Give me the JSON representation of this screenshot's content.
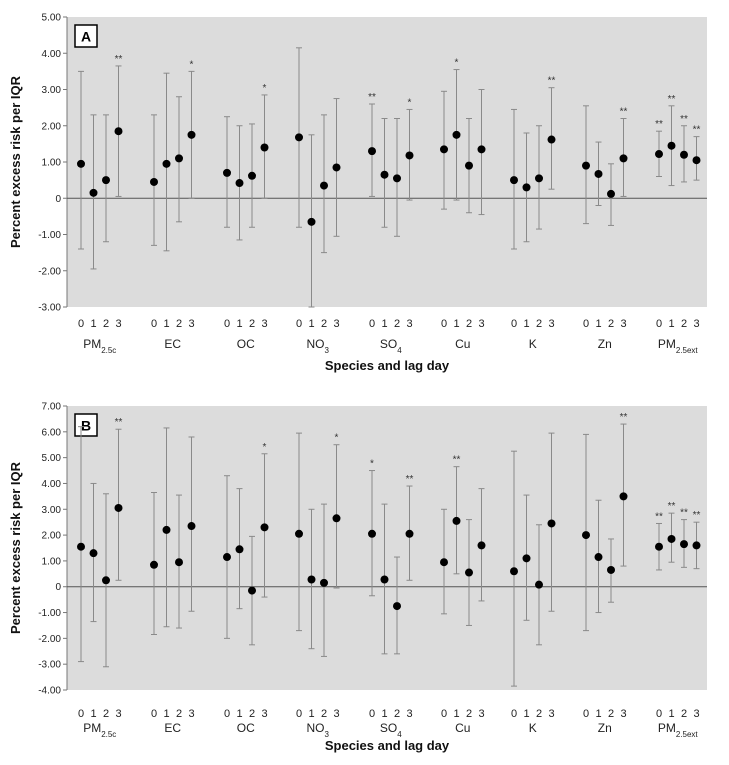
{
  "figure": {
    "species": [
      {
        "main": "PM",
        "sub": "2.5c"
      },
      {
        "main": "EC",
        "sub": ""
      },
      {
        "main": "OC",
        "sub": ""
      },
      {
        "main": "NO",
        "sub": "3"
      },
      {
        "main": "SO",
        "sub": "4"
      },
      {
        "main": "Cu",
        "sub": ""
      },
      {
        "main": "K",
        "sub": ""
      },
      {
        "main": "Zn",
        "sub": ""
      },
      {
        "main": "PM",
        "sub": "2.5ext"
      }
    ],
    "lag_labels": [
      "0",
      "1",
      "2",
      "3"
    ]
  },
  "chart_data": [
    {
      "type": "scatter",
      "panel": "A",
      "title": "",
      "xlabel": "Species and lag day",
      "ylabel": "Percent excess risk per IQR",
      "ylim": [
        -3,
        5
      ],
      "yticks": [
        "-3.00",
        "-2.00",
        "-1.00",
        "0",
        "1.00",
        "2.00",
        "3.00",
        "4.00",
        "5.00"
      ],
      "ytick_values": [
        -3,
        -2,
        -1,
        0,
        1,
        2,
        3,
        4,
        5
      ],
      "groups": [
        {
          "species": "PM2.5c",
          "points": [
            {
              "lag": 0,
              "est": 0.95,
              "lo": -1.4,
              "hi": 3.5,
              "sig": ""
            },
            {
              "lag": 1,
              "est": 0.15,
              "lo": -1.95,
              "hi": 2.3,
              "sig": ""
            },
            {
              "lag": 2,
              "est": 0.5,
              "lo": -1.2,
              "hi": 2.3,
              "sig": ""
            },
            {
              "lag": 3,
              "est": 1.85,
              "lo": 0.05,
              "hi": 3.65,
              "sig": "**"
            }
          ]
        },
        {
          "species": "EC",
          "points": [
            {
              "lag": 0,
              "est": 0.45,
              "lo": -1.3,
              "hi": 2.3,
              "sig": ""
            },
            {
              "lag": 1,
              "est": 0.95,
              "lo": -1.45,
              "hi": 3.45,
              "sig": ""
            },
            {
              "lag": 2,
              "est": 1.1,
              "lo": -0.65,
              "hi": 2.8,
              "sig": ""
            },
            {
              "lag": 3,
              "est": 1.75,
              "lo": 0.0,
              "hi": 3.5,
              "sig": "*"
            }
          ]
        },
        {
          "species": "OC",
          "points": [
            {
              "lag": 0,
              "est": 0.7,
              "lo": -0.8,
              "hi": 2.25,
              "sig": ""
            },
            {
              "lag": 1,
              "est": 0.42,
              "lo": -1.15,
              "hi": 2.0,
              "sig": ""
            },
            {
              "lag": 2,
              "est": 0.62,
              "lo": -0.8,
              "hi": 2.05,
              "sig": ""
            },
            {
              "lag": 3,
              "est": 1.4,
              "lo": 0.0,
              "hi": 2.85,
              "sig": "*"
            }
          ]
        },
        {
          "species": "NO3",
          "points": [
            {
              "lag": 0,
              "est": 1.68,
              "lo": -0.8,
              "hi": 4.15,
              "sig": ""
            },
            {
              "lag": 1,
              "est": -0.65,
              "lo": -3.0,
              "hi": 1.75,
              "sig": ""
            },
            {
              "lag": 2,
              "est": 0.35,
              "lo": -1.5,
              "hi": 2.3,
              "sig": ""
            },
            {
              "lag": 3,
              "est": 0.85,
              "lo": -1.05,
              "hi": 2.75,
              "sig": ""
            }
          ]
        },
        {
          "species": "SO4",
          "points": [
            {
              "lag": 0,
              "est": 1.3,
              "lo": 0.05,
              "hi": 2.6,
              "sig": "**"
            },
            {
              "lag": 1,
              "est": 0.65,
              "lo": -0.8,
              "hi": 2.2,
              "sig": ""
            },
            {
              "lag": 2,
              "est": 0.55,
              "lo": -1.05,
              "hi": 2.2,
              "sig": ""
            },
            {
              "lag": 3,
              "est": 1.18,
              "lo": -0.05,
              "hi": 2.45,
              "sig": "*"
            }
          ]
        },
        {
          "species": "Cu",
          "points": [
            {
              "lag": 0,
              "est": 1.35,
              "lo": -0.3,
              "hi": 2.95,
              "sig": ""
            },
            {
              "lag": 1,
              "est": 1.75,
              "lo": -0.05,
              "hi": 3.55,
              "sig": "*"
            },
            {
              "lag": 2,
              "est": 0.9,
              "lo": -0.4,
              "hi": 2.2,
              "sig": ""
            },
            {
              "lag": 3,
              "est": 1.35,
              "lo": -0.45,
              "hi": 3.0,
              "sig": ""
            }
          ]
        },
        {
          "species": "K",
          "points": [
            {
              "lag": 0,
              "est": 0.5,
              "lo": -1.4,
              "hi": 2.45,
              "sig": ""
            },
            {
              "lag": 1,
              "est": 0.3,
              "lo": -1.2,
              "hi": 1.8,
              "sig": ""
            },
            {
              "lag": 2,
              "est": 0.55,
              "lo": -0.85,
              "hi": 2.0,
              "sig": ""
            },
            {
              "lag": 3,
              "est": 1.62,
              "lo": 0.25,
              "hi": 3.05,
              "sig": "**"
            }
          ]
        },
        {
          "species": "Zn",
          "points": [
            {
              "lag": 0,
              "est": 0.9,
              "lo": -0.7,
              "hi": 2.55,
              "sig": ""
            },
            {
              "lag": 1,
              "est": 0.67,
              "lo": -0.2,
              "hi": 1.55,
              "sig": ""
            },
            {
              "lag": 2,
              "est": 0.12,
              "lo": -0.75,
              "hi": 0.95,
              "sig": ""
            },
            {
              "lag": 3,
              "est": 1.1,
              "lo": 0.05,
              "hi": 2.2,
              "sig": "**"
            }
          ]
        },
        {
          "species": "PM2.5ext",
          "points": [
            {
              "lag": 0,
              "est": 1.22,
              "lo": 0.6,
              "hi": 1.85,
              "sig": "**"
            },
            {
              "lag": 1,
              "est": 1.45,
              "lo": 0.35,
              "hi": 2.55,
              "sig": "**"
            },
            {
              "lag": 2,
              "est": 1.2,
              "lo": 0.45,
              "hi": 2.0,
              "sig": "**"
            },
            {
              "lag": 3,
              "est": 1.05,
              "lo": 0.5,
              "hi": 1.7,
              "sig": "**"
            }
          ]
        }
      ]
    },
    {
      "type": "scatter",
      "panel": "B",
      "title": "",
      "xlabel": "Species and lag day",
      "ylabel": "Percent excess risk per IQR",
      "ylim": [
        -4,
        7
      ],
      "yticks": [
        "-4.00",
        "-3.00",
        "-2.00",
        "-1.00",
        "0",
        "1.00",
        "2.00",
        "3.00",
        "4.00",
        "5.00",
        "6.00",
        "7.00"
      ],
      "ytick_values": [
        -4,
        -3,
        -2,
        -1,
        0,
        1,
        2,
        3,
        4,
        5,
        6,
        7
      ],
      "groups": [
        {
          "species": "PM2.5c",
          "points": [
            {
              "lag": 0,
              "est": 1.55,
              "lo": -2.9,
              "hi": 6.2,
              "sig": ""
            },
            {
              "lag": 1,
              "est": 1.3,
              "lo": -1.35,
              "hi": 4.0,
              "sig": ""
            },
            {
              "lag": 2,
              "est": 0.25,
              "lo": -3.1,
              "hi": 3.6,
              "sig": ""
            },
            {
              "lag": 3,
              "est": 3.05,
              "lo": 0.25,
              "hi": 6.1,
              "sig": "**"
            }
          ]
        },
        {
          "species": "EC",
          "points": [
            {
              "lag": 0,
              "est": 0.85,
              "lo": -1.85,
              "hi": 3.65,
              "sig": ""
            },
            {
              "lag": 1,
              "est": 2.2,
              "lo": -1.55,
              "hi": 6.15,
              "sig": ""
            },
            {
              "lag": 2,
              "est": 0.95,
              "lo": -1.6,
              "hi": 3.55,
              "sig": ""
            },
            {
              "lag": 3,
              "est": 2.35,
              "lo": -0.95,
              "hi": 5.8,
              "sig": ""
            }
          ]
        },
        {
          "species": "OC",
          "points": [
            {
              "lag": 0,
              "est": 1.15,
              "lo": -2.0,
              "hi": 4.3,
              "sig": ""
            },
            {
              "lag": 1,
              "est": 1.45,
              "lo": -0.85,
              "hi": 3.8,
              "sig": ""
            },
            {
              "lag": 2,
              "est": -0.15,
              "lo": -2.25,
              "hi": 1.95,
              "sig": ""
            },
            {
              "lag": 3,
              "est": 2.3,
              "lo": -0.4,
              "hi": 5.15,
              "sig": "*"
            }
          ]
        },
        {
          "species": "NO3",
          "points": [
            {
              "lag": 0,
              "est": 2.05,
              "lo": -1.7,
              "hi": 5.95,
              "sig": ""
            },
            {
              "lag": 1,
              "est": 0.28,
              "lo": -2.4,
              "hi": 3.0,
              "sig": ""
            },
            {
              "lag": 2,
              "est": 0.15,
              "lo": -2.7,
              "hi": 3.2,
              "sig": ""
            },
            {
              "lag": 3,
              "est": 2.65,
              "lo": -0.05,
              "hi": 5.5,
              "sig": "*"
            }
          ]
        },
        {
          "species": "SO4",
          "points": [
            {
              "lag": 0,
              "est": 2.05,
              "lo": -0.35,
              "hi": 4.5,
              "sig": "*"
            },
            {
              "lag": 1,
              "est": 0.28,
              "lo": -2.6,
              "hi": 3.2,
              "sig": ""
            },
            {
              "lag": 2,
              "est": -0.75,
              "lo": -2.6,
              "hi": 1.15,
              "sig": ""
            },
            {
              "lag": 3,
              "est": 2.05,
              "lo": 0.25,
              "hi": 3.9,
              "sig": "**"
            }
          ]
        },
        {
          "species": "Cu",
          "points": [
            {
              "lag": 0,
              "est": 0.95,
              "lo": -1.05,
              "hi": 3.0,
              "sig": ""
            },
            {
              "lag": 1,
              "est": 2.55,
              "lo": 0.5,
              "hi": 4.65,
              "sig": "**"
            },
            {
              "lag": 2,
              "est": 0.55,
              "lo": -1.5,
              "hi": 2.6,
              "sig": ""
            },
            {
              "lag": 3,
              "est": 1.6,
              "lo": -0.55,
              "hi": 3.8,
              "sig": ""
            }
          ]
        },
        {
          "species": "K",
          "points": [
            {
              "lag": 0,
              "est": 0.6,
              "lo": -3.85,
              "hi": 5.25,
              "sig": ""
            },
            {
              "lag": 1,
              "est": 1.1,
              "lo": -1.3,
              "hi": 3.55,
              "sig": ""
            },
            {
              "lag": 2,
              "est": 0.08,
              "lo": -2.25,
              "hi": 2.4,
              "sig": ""
            },
            {
              "lag": 3,
              "est": 2.45,
              "lo": -0.95,
              "hi": 5.95,
              "sig": ""
            }
          ]
        },
        {
          "species": "Zn",
          "points": [
            {
              "lag": 0,
              "est": 2.0,
              "lo": -1.7,
              "hi": 5.9,
              "sig": ""
            },
            {
              "lag": 1,
              "est": 1.15,
              "lo": -1.0,
              "hi": 3.35,
              "sig": ""
            },
            {
              "lag": 2,
              "est": 0.65,
              "lo": -0.6,
              "hi": 1.85,
              "sig": ""
            },
            {
              "lag": 3,
              "est": 3.5,
              "lo": 0.8,
              "hi": 6.3,
              "sig": "**"
            }
          ]
        },
        {
          "species": "PM2.5ext",
          "points": [
            {
              "lag": 0,
              "est": 1.55,
              "lo": 0.65,
              "hi": 2.45,
              "sig": "**"
            },
            {
              "lag": 1,
              "est": 1.85,
              "lo": 0.95,
              "hi": 2.85,
              "sig": "**"
            },
            {
              "lag": 2,
              "est": 1.65,
              "lo": 0.75,
              "hi": 2.6,
              "sig": "**"
            },
            {
              "lag": 3,
              "est": 1.6,
              "lo": 0.7,
              "hi": 2.5,
              "sig": "**"
            }
          ]
        }
      ]
    }
  ]
}
